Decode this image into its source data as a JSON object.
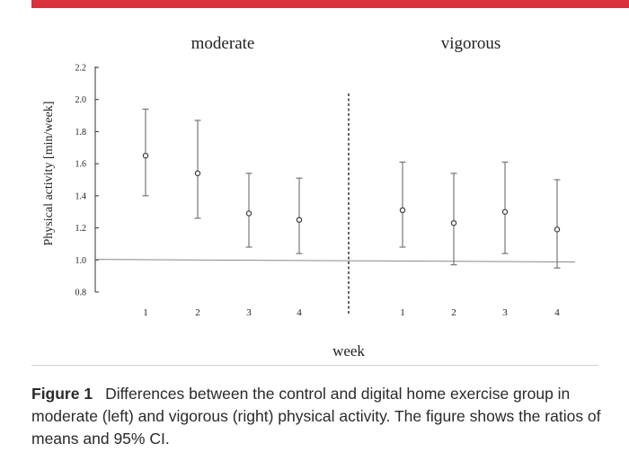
{
  "chart_data": {
    "type": "scatter",
    "ylabel": "Physical activity [min/week]",
    "xlabel": "week",
    "ylim": [
      0.8,
      2.2
    ],
    "yticks": [
      "0.8",
      "1.0",
      "1.2",
      "1.4",
      "1.6",
      "1.8",
      "2.0",
      "2.2"
    ],
    "reference_line": 1.0,
    "panels": [
      {
        "title": "moderate",
        "categories": [
          "1",
          "2",
          "3",
          "4"
        ],
        "values": [
          1.65,
          1.54,
          1.29,
          1.25
        ],
        "ci_lower": [
          1.4,
          1.26,
          1.08,
          1.04
        ],
        "ci_upper": [
          1.94,
          1.87,
          1.54,
          1.51
        ]
      },
      {
        "title": "vigorous",
        "categories": [
          "1",
          "2",
          "3",
          "4"
        ],
        "values": [
          1.31,
          1.23,
          1.3,
          1.19
        ],
        "ci_lower": [
          1.08,
          0.97,
          1.04,
          0.95
        ],
        "ci_upper": [
          1.61,
          1.54,
          1.61,
          1.5
        ]
      }
    ]
  },
  "caption": {
    "label": "Figure 1",
    "text": "Differences between the control and digital home exercise group in moderate (left) and vigorous (right) physical activity. The figure shows the ratios of means and 95% CI."
  }
}
